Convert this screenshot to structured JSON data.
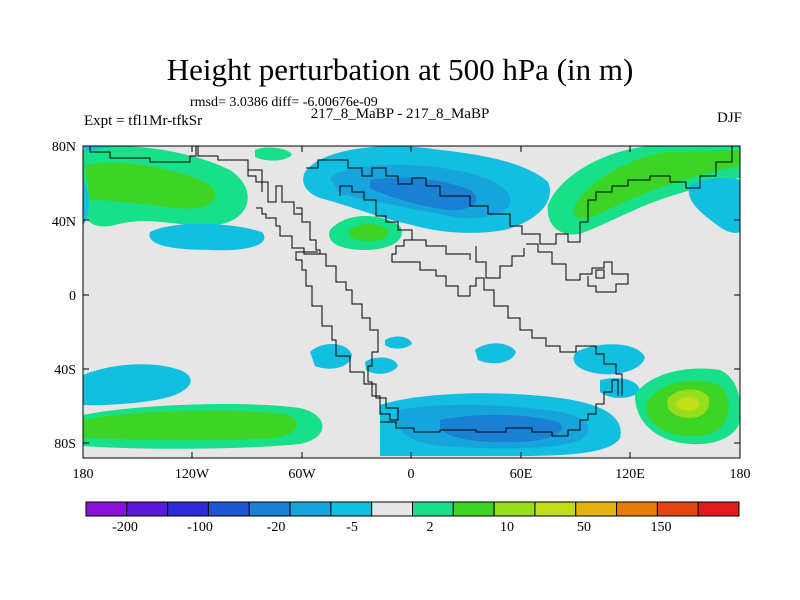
{
  "title": "Height perturbation at 500 hPa (in m)",
  "stats": "rmsd= 3.0386 diff= -6.00676e-09",
  "experiment_label": "Expt = tfl1Mr-tfkSr",
  "center_label": "217_8_MaBP - 217_8_MaBP",
  "season": "DJF",
  "axes": {
    "y_ticks": [
      "80N",
      "40N",
      "0",
      "40S",
      "80S"
    ],
    "x_ticks": [
      "180",
      "120W",
      "60W",
      "0",
      "60E",
      "120E",
      "180"
    ]
  },
  "colorbar": {
    "colors": [
      "#8a12d8",
      "#5a19d8",
      "#2f2bd8",
      "#1e56d2",
      "#1a80d4",
      "#16a4dc",
      "#12bfe0",
      "#e6e6e6",
      "#18e08a",
      "#3ed425",
      "#98dd1c",
      "#c2de16",
      "#e3b40c",
      "#e67d09",
      "#e54512",
      "#e21a1a"
    ],
    "labels": [
      "-200",
      "-100",
      "-20",
      "-5",
      "2",
      "10",
      "50",
      "150"
    ]
  },
  "palette": {
    "background": "#e6e6e6",
    "green": "#3ed425",
    "mint": "#18e08a",
    "cyan": "#12bfe0",
    "blue_light": "#16a4dc",
    "blue": "#1a80d4",
    "lime": "#98dd1c",
    "yellow_green": "#c2de16",
    "border": "#000000"
  }
}
